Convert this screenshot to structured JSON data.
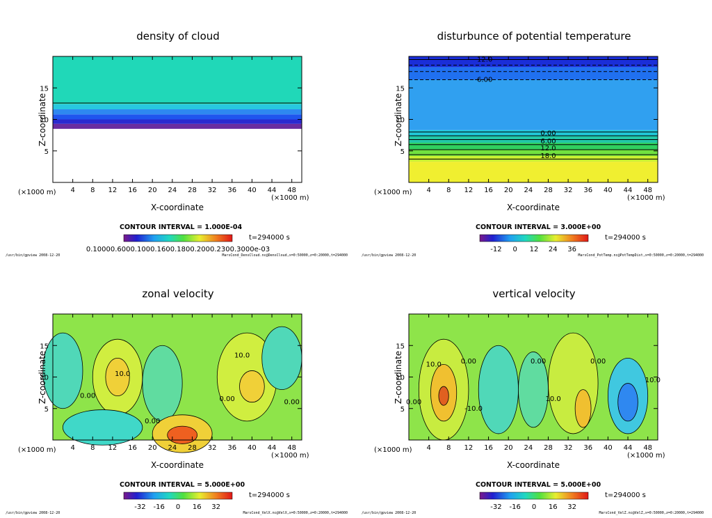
{
  "window": {
    "title": "gpview"
  },
  "colors": {
    "axis": "#000000",
    "contour": "#000000"
  },
  "chart_data": [
    {
      "type": "heatmap",
      "id": "p1",
      "title": "density of cloud",
      "xlabel": "X-coordinate",
      "ylabel": "Z-coordinate",
      "xunit": "(×1000 m)",
      "yunit": "(×1000 m)",
      "xlim": [
        0,
        50
      ],
      "ylim": [
        0,
        20
      ],
      "xticks": [
        "4",
        "8",
        "12",
        "16",
        "20",
        "24",
        "28",
        "32",
        "36",
        "40",
        "44",
        "48"
      ],
      "yticks": [
        "5",
        "10",
        "15"
      ],
      "contour_interval": "CONTOUR INTERVAL = 1.000E-04",
      "time": "t=294000 s",
      "colorbar_labels": "0.10000.6000.1000.1600.1800.2000.2300.3000e-03",
      "footer_left": "/usr/bin/gpview   2008-12-20",
      "footer_right": "MarsCond_DensCloud.nc@DensCloud,x=0:50000,z=0:20000,t=294000",
      "layers": [
        {
          "z": [
            8.5,
            9.3
          ],
          "color": "#6a2da0"
        },
        {
          "z": [
            9.3,
            10.0
          ],
          "color": "#2a2ad0"
        },
        {
          "z": [
            10.0,
            10.8
          ],
          "color": "#1f55ee"
        },
        {
          "z": [
            10.8,
            11.6
          ],
          "color": "#2e88f0"
        },
        {
          "z": [
            11.6,
            12.4
          ],
          "color": "#28c8e0"
        },
        {
          "z": [
            12.4,
            20.0
          ],
          "color": "#20d8b8"
        }
      ],
      "contours": [
        {
          "z": 12.6
        }
      ],
      "contour_labels": []
    },
    {
      "type": "heatmap",
      "id": "p2",
      "title": "disturbunce of potential temperature",
      "xlabel": "X-coordinate",
      "ylabel": "Z-coordinate",
      "xunit": "(×1000 m)",
      "yunit": "(×1000 m)",
      "xlim": [
        0,
        50
      ],
      "ylim": [
        0,
        20
      ],
      "xticks": [
        "4",
        "8",
        "12",
        "16",
        "20",
        "24",
        "28",
        "32",
        "36",
        "40",
        "44",
        "48"
      ],
      "yticks": [
        "5",
        "10",
        "15"
      ],
      "contour_interval": "CONTOUR INTERVAL = 3.000E+00",
      "time": "t=294000 s",
      "colorbar_labels": [
        "-12",
        "0",
        "12",
        "24",
        "36"
      ],
      "footer_left": "/usr/bin/gpview   2008-12-20",
      "footer_right": "MarsCond_PotTemp.nc@PotTempDist,x=0:50000,z=0:20000,t=294000",
      "layers": [
        {
          "z": [
            0,
            3.3
          ],
          "color": "#f0ef30"
        },
        {
          "z": [
            3.3,
            4.2
          ],
          "color": "#c8ee30"
        },
        {
          "z": [
            4.2,
            5.2
          ],
          "color": "#70e040"
        },
        {
          "z": [
            5.2,
            6.3
          ],
          "color": "#30d060"
        },
        {
          "z": [
            6.3,
            7.4
          ],
          "color": "#22c8a8"
        },
        {
          "z": [
            7.4,
            8.3
          ],
          "color": "#20c8d8"
        },
        {
          "z": [
            8.3,
            16.3
          ],
          "color": "#30a0f0"
        },
        {
          "z": [
            16.3,
            18.3
          ],
          "color": "#2070f0"
        },
        {
          "z": [
            18.3,
            20.0
          ],
          "color": "#1a2ed8"
        }
      ],
      "contours": [
        {
          "z": 3.7
        },
        {
          "z": 4.4
        },
        {
          "z": 5.2
        },
        {
          "z": 6.0
        },
        {
          "z": 6.8
        },
        {
          "z": 7.4
        },
        {
          "z": 8.0
        },
        {
          "z": 16.3,
          "dash": true
        },
        {
          "z": 17.6,
          "dash": true
        },
        {
          "z": 18.6,
          "dash": true
        },
        {
          "z": 19.5
        }
      ],
      "contour_labels": [
        {
          "text": "0.00",
          "x": 28,
          "z": 7.8
        },
        {
          "text": "6.00",
          "x": 28,
          "z": 6.5
        },
        {
          "text": "12.0",
          "x": 28,
          "z": 5.4
        },
        {
          "text": "18.0",
          "x": 28,
          "z": 4.2
        },
        {
          "text": "-6.00",
          "x": 15,
          "z": 16.3
        },
        {
          "text": "-12.0",
          "x": 15,
          "z": 19.5
        }
      ]
    },
    {
      "type": "heatmap",
      "id": "p3",
      "title": "zonal velocity",
      "xlabel": "X-coordinate",
      "ylabel": "Z-coordinate",
      "xunit": "(×1000 m)",
      "yunit": "(×1000 m)",
      "xlim": [
        0,
        50
      ],
      "ylim": [
        0,
        20
      ],
      "xticks": [
        "4",
        "8",
        "12",
        "16",
        "20",
        "24",
        "28",
        "32",
        "36",
        "40",
        "44",
        "48"
      ],
      "yticks": [
        "5",
        "10",
        "15"
      ],
      "contour_interval": "CONTOUR INTERVAL = 5.000E+00",
      "time": "t=294000 s",
      "colorbar_labels": [
        "-32",
        "-16",
        "0",
        "16",
        "32"
      ],
      "footer_left": "/usr/bin/gpview   2008-12-20",
      "footer_right": "MarsCond_VelX.nc@VelX,x=0:50000,z=0:20000,t=294000",
      "background": "#8ee44a",
      "blobs": [
        {
          "cx": 2,
          "cz": 11,
          "rx": 4,
          "rz": 6,
          "color": "#50d8b8"
        },
        {
          "cx": 13,
          "cz": 10,
          "rx": 5,
          "rz": 6,
          "color": "#d0ee40"
        },
        {
          "cx": 13,
          "cz": 10,
          "rx": 2.4,
          "rz": 3,
          "color": "#f0d038"
        },
        {
          "cx": 22,
          "cz": 9,
          "rx": 4,
          "rz": 6,
          "color": "#60dca0"
        },
        {
          "cx": 39,
          "cz": 10,
          "rx": 6,
          "rz": 7,
          "color": "#d0ee40"
        },
        {
          "cx": 40,
          "cz": 8.5,
          "rx": 2.5,
          "rz": 2.5,
          "color": "#f0d038"
        },
        {
          "cx": 26,
          "cz": 1,
          "rx": 6,
          "rz": 3,
          "color": "#f0d038"
        },
        {
          "cx": 26,
          "cz": 0.8,
          "rx": 3,
          "rz": 1.4,
          "color": "#ee6020"
        },
        {
          "cx": 10,
          "cz": 2,
          "rx": 8,
          "rz": 2.8,
          "color": "#40d8c8"
        },
        {
          "cx": 46,
          "cz": 13,
          "rx": 4,
          "rz": 5,
          "color": "#50d8b8"
        }
      ],
      "contour_labels": [
        {
          "text": "10.0",
          "x": 14,
          "z": 10.5
        },
        {
          "text": "10.0",
          "x": 38,
          "z": 13.4
        },
        {
          "text": "0.00",
          "x": 7,
          "z": 7
        },
        {
          "text": "0.00",
          "x": 20,
          "z": 3
        },
        {
          "text": "0.00",
          "x": 35,
          "z": 6.5
        },
        {
          "text": "0.00",
          "x": 48,
          "z": 6
        }
      ]
    },
    {
      "type": "heatmap",
      "id": "p4",
      "title": "vertical velocity",
      "xlabel": "X-coordinate",
      "ylabel": "Z-coordinate",
      "xunit": "(×1000 m)",
      "yunit": "(×1000 m)",
      "xlim": [
        0,
        50
      ],
      "ylim": [
        0,
        20
      ],
      "xticks": [
        "4",
        "8",
        "12",
        "16",
        "20",
        "24",
        "28",
        "32",
        "36",
        "40",
        "44",
        "48"
      ],
      "yticks": [
        "5",
        "10",
        "15"
      ],
      "contour_interval": "CONTOUR INTERVAL = 5.000E+00",
      "time": "t=294000 s",
      "colorbar_labels": [
        "-32",
        "-16",
        "0",
        "16",
        "32"
      ],
      "footer_left": "/usr/bin/gpview   2008-12-20",
      "footer_right": "MarsCond_VelZ.nc@VelZ,x=0:50000,z=0:20000,t=294000",
      "background": "#8ee44a",
      "blobs": [
        {
          "cx": 7,
          "cz": 8,
          "rx": 5,
          "rz": 8,
          "color": "#c8ec40"
        },
        {
          "cx": 7,
          "cz": 7.5,
          "rx": 2.6,
          "rz": 4.5,
          "color": "#f0c030"
        },
        {
          "cx": 7,
          "cz": 7,
          "rx": 1,
          "rz": 1.5,
          "color": "#e06020"
        },
        {
          "cx": 18,
          "cz": 8,
          "rx": 4,
          "rz": 7,
          "color": "#50d8b8"
        },
        {
          "cx": 33,
          "cz": 9,
          "rx": 5,
          "rz": 8,
          "color": "#c8ec40"
        },
        {
          "cx": 35,
          "cz": 5,
          "rx": 1.6,
          "rz": 3,
          "color": "#f0c030"
        },
        {
          "cx": 25,
          "cz": 8,
          "rx": 3,
          "rz": 6,
          "color": "#60dca0"
        },
        {
          "cx": 44,
          "cz": 7,
          "rx": 4,
          "rz": 6,
          "color": "#40c8e0"
        },
        {
          "cx": 44,
          "cz": 6,
          "rx": 2,
          "rz": 3,
          "color": "#2f88f0"
        }
      ],
      "contour_labels": [
        {
          "text": "10.0",
          "x": 5,
          "z": 12
        },
        {
          "text": "0.00",
          "x": 12,
          "z": 12.5
        },
        {
          "text": "-10.0",
          "x": 13,
          "z": 5
        },
        {
          "text": "10.0",
          "x": 29,
          "z": 6.5
        },
        {
          "text": "0.00",
          "x": 26,
          "z": 12.5
        },
        {
          "text": "0.00",
          "x": 38,
          "z": 12.5
        },
        {
          "text": "10.0",
          "x": 49,
          "z": 9.5
        },
        {
          "text": "0.00",
          "x": 1,
          "z": 6
        }
      ]
    }
  ]
}
